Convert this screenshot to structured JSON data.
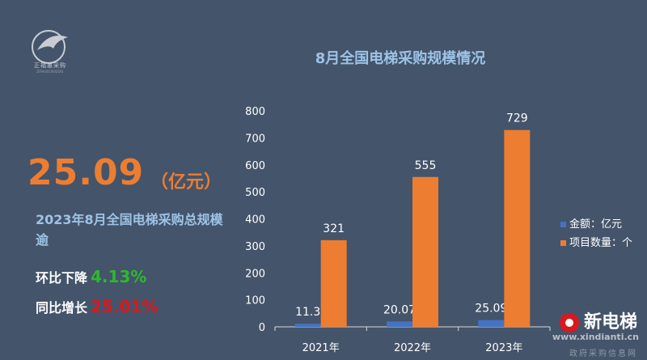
{
  "logo": {
    "text": "正福惠采购",
    "subtext": "ZFHUICAIGOU"
  },
  "headline": {
    "value": "25.09",
    "unit": "（亿元）"
  },
  "summary": "2023年8月全国电梯采购总规模逾",
  "stats": [
    {
      "label": "环比下降",
      "value": "4.13%",
      "color": "#2eb82e"
    },
    {
      "label": "同比增长",
      "value": "25.01%",
      "color": "#e0161b"
    }
  ],
  "watermark": {
    "brand": "新电梯",
    "url": "www.xindianti.cn",
    "source": "政府采购信息网"
  },
  "chart_data": {
    "type": "bar",
    "title": "8月全国电梯采购规模情况",
    "categories": [
      "2021年",
      "2022年",
      "2023年"
    ],
    "series": [
      {
        "name": "金额：亿元",
        "values": [
          11.3,
          20.07,
          25.09
        ],
        "color": "#4472c4"
      },
      {
        "name": "项目数量：个",
        "values": [
          321,
          555,
          729
        ],
        "color": "#ed7d31"
      }
    ],
    "ylim": [
      0,
      800
    ],
    "yticks": [
      0,
      100,
      200,
      300,
      400,
      500,
      600,
      700,
      800
    ],
    "data_labels": [
      "11.3",
      "20.07",
      "25.09",
      "321",
      "555",
      "729"
    ],
    "legend": "right",
    "grid": false
  }
}
